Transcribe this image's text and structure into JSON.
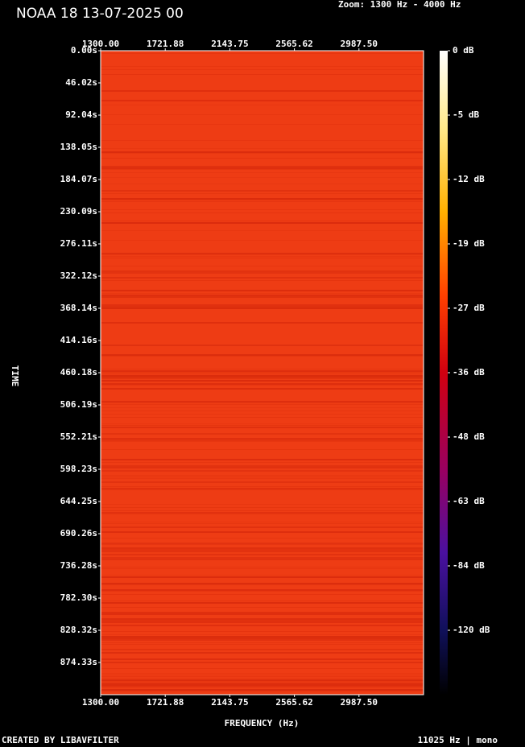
{
  "chart_data": {
    "type": "spectrogram",
    "title": "NOAA 18 13-07-2025 00",
    "subtitle": "Zoom: 1300 Hz - 4000 Hz",
    "x_label": "FREQUENCY (Hz)",
    "y_label": "TIME",
    "footer_left": "CREATED BY LIBAVFILTER",
    "footer_right": "11025 Hz | mono",
    "xlim": [
      1300,
      3409.38
    ],
    "xticks": [
      {
        "value": 1300,
        "label": "1300.00"
      },
      {
        "value": 1721.88,
        "label": "1721.88"
      },
      {
        "value": 2143.75,
        "label": "2143.75"
      },
      {
        "value": 2565.62,
        "label": "2565.62"
      },
      {
        "value": 2987.5,
        "label": "2987.50"
      }
    ],
    "ylim": [
      0,
      920.33
    ],
    "yticks": [
      {
        "value": 0,
        "label": "0.00s"
      },
      {
        "value": 46.02,
        "label": "46.02s"
      },
      {
        "value": 92.04,
        "label": "92.04s"
      },
      {
        "value": 138.05,
        "label": "138.05s"
      },
      {
        "value": 184.07,
        "label": "184.07s"
      },
      {
        "value": 230.09,
        "label": "230.09s"
      },
      {
        "value": 276.11,
        "label": "276.11s"
      },
      {
        "value": 322.12,
        "label": "322.12s"
      },
      {
        "value": 368.14,
        "label": "368.14s"
      },
      {
        "value": 414.16,
        "label": "414.16s"
      },
      {
        "value": 460.18,
        "label": "460.18s"
      },
      {
        "value": 506.19,
        "label": "506.19s"
      },
      {
        "value": 552.21,
        "label": "552.21s"
      },
      {
        "value": 598.23,
        "label": "598.23s"
      },
      {
        "value": 644.25,
        "label": "644.25s"
      },
      {
        "value": 690.26,
        "label": "690.26s"
      },
      {
        "value": 736.28,
        "label": "736.28s"
      },
      {
        "value": 782.3,
        "label": "782.30s"
      },
      {
        "value": 828.32,
        "label": "828.32s"
      },
      {
        "value": 874.33,
        "label": "874.33s"
      }
    ],
    "colorbar_ticks": [
      {
        "value": 0,
        "label": "0 dB"
      },
      {
        "value": -5,
        "label": "-5 dB"
      },
      {
        "value": -12,
        "label": "-12 dB"
      },
      {
        "value": -19,
        "label": "-19 dB"
      },
      {
        "value": -27,
        "label": "-27 dB"
      },
      {
        "value": -36,
        "label": "-36 dB"
      },
      {
        "value": -48,
        "label": "-48 dB"
      },
      {
        "value": -63,
        "label": "-63 dB"
      },
      {
        "value": -84,
        "label": "-84 dB"
      },
      {
        "value": -120,
        "label": "-120 dB"
      }
    ]
  }
}
